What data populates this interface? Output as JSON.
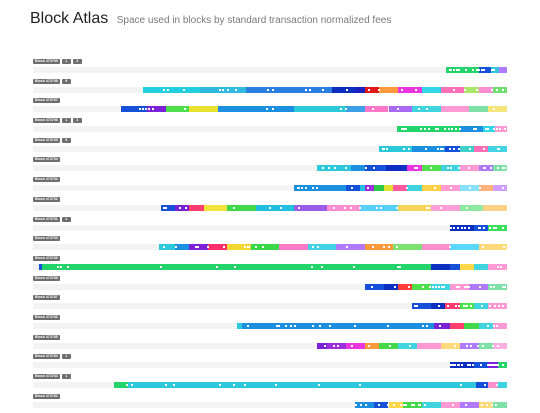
{
  "header": {
    "title": "Block Atlas",
    "subtitle": "Space used in blocks by standard transaction normalized fees"
  },
  "palette": {
    "track": "#f3f3f3",
    "label_bg": "#6e6e6e",
    "deep_blue": "#0d2fbf",
    "royal_blue": "#1550d8",
    "cyan": "#2ec8dc",
    "purple": "#7b22d6",
    "green": "#22d46a",
    "lime": "#8ce83a"
  },
  "blocks": [
    {
      "label": "Block 473799",
      "tags": [
        "1",
        "3"
      ],
      "fee_spectrum": [
        [
          0.871,
          "#22d46a"
        ],
        [
          0.94,
          "#1550d8"
        ],
        [
          0.967,
          "#35c7d9"
        ],
        [
          0.984,
          "#b07aff"
        ],
        [
          1.0,
          "#8ce83a"
        ]
      ]
    },
    {
      "label": "Block 473798",
      "tags": [
        "9"
      ],
      "fee_spectrum": [
        [
          0.232,
          "#22cfe0"
        ],
        [
          0.352,
          "#30b9df"
        ],
        [
          0.45,
          "#2a7fe0"
        ],
        [
          0.63,
          "#0d2fbf"
        ],
        [
          0.68,
          "#1a1fc0"
        ],
        [
          0.7,
          "#e01818"
        ],
        [
          0.73,
          "#ff9a3c"
        ],
        [
          0.77,
          "#ec34e0"
        ],
        [
          0.82,
          "#33d6e8"
        ],
        [
          0.86,
          "#ff6fb8"
        ],
        [
          0.91,
          "#a9e66a"
        ],
        [
          0.94,
          "#ff8dd2"
        ],
        [
          0.97,
          "#6fe06c"
        ],
        [
          1.0,
          "#8ce83a"
        ]
      ]
    },
    {
      "label": "Block 473797",
      "tags": [],
      "fee_spectrum": [
        [
          0.185,
          "#1550d8"
        ],
        [
          0.24,
          "#7b22d6"
        ],
        [
          0.28,
          "#4de04a"
        ],
        [
          0.33,
          "#e8e22e"
        ],
        [
          0.39,
          "#1d8fe0"
        ],
        [
          0.55,
          "#2ec8dc"
        ],
        [
          0.66,
          "#3da0e6"
        ],
        [
          0.7,
          "#ff78c8"
        ],
        [
          0.75,
          "#a86af0"
        ],
        [
          0.8,
          "#40d4e0"
        ],
        [
          0.86,
          "#ff9ad4"
        ],
        [
          0.92,
          "#7fe0a8"
        ],
        [
          0.96,
          "#f6e57a"
        ],
        [
          1.0,
          "#a8f070"
        ]
      ]
    },
    {
      "label": "Block 473796",
      "tags": [
        "1",
        "3"
      ],
      "fee_spectrum": [
        [
          0.767,
          "#22d46a"
        ],
        [
          0.9,
          "#1d8fe0"
        ],
        [
          0.95,
          "#33d6e8"
        ],
        [
          0.975,
          "#ff9ad4"
        ],
        [
          1.0,
          "#c7c2ff"
        ]
      ]
    },
    {
      "label": "Block 473795",
      "tags": [
        "9"
      ],
      "fee_spectrum": [
        [
          0.729,
          "#2ec8dc"
        ],
        [
          0.8,
          "#1d8fe0"
        ],
        [
          0.87,
          "#1550d8"
        ],
        [
          0.9,
          "#3dd0c8"
        ],
        [
          0.93,
          "#ff6fb8"
        ],
        [
          0.96,
          "#44d4e6"
        ],
        [
          1.0,
          "#ffb0e0"
        ]
      ]
    },
    {
      "label": "Block 473794",
      "tags": [],
      "fee_spectrum": [
        [
          0.6,
          "#2ec8dc"
        ],
        [
          0.67,
          "#1d8fe0"
        ],
        [
          0.7,
          "#1550d8"
        ],
        [
          0.745,
          "#0d2fbf"
        ],
        [
          0.79,
          "#ec34e0"
        ],
        [
          0.82,
          "#4de04a"
        ],
        [
          0.86,
          "#40d4e0"
        ],
        [
          0.9,
          "#ff9ad4"
        ],
        [
          0.94,
          "#b07aff"
        ],
        [
          0.97,
          "#7fe0a8"
        ],
        [
          1.0,
          "#a8f070"
        ]
      ]
    },
    {
      "label": "Block 473793",
      "tags": [],
      "fee_spectrum": [
        [
          0.55,
          "#1d8fe0"
        ],
        [
          0.66,
          "#1550d8"
        ],
        [
          0.69,
          "#22c0e0"
        ],
        [
          0.7,
          "#9c30e0"
        ],
        [
          0.72,
          "#2ec84a"
        ],
        [
          0.74,
          "#e0e030"
        ],
        [
          0.76,
          "#ff5aa0"
        ],
        [
          0.79,
          "#40d4e0"
        ],
        [
          0.82,
          "#ffd14a"
        ],
        [
          0.86,
          "#ff9ad4"
        ],
        [
          0.9,
          "#8ae0ff"
        ],
        [
          0.94,
          "#ffb37a"
        ],
        [
          0.97,
          "#cfa0ff"
        ],
        [
          1.0,
          "#a8f070"
        ]
      ]
    },
    {
      "label": "Block 473792",
      "tags": [],
      "fee_spectrum": [
        [
          0.27,
          "#1550d8"
        ],
        [
          0.3,
          "#7b22d6"
        ],
        [
          0.33,
          "#ff3d6e"
        ],
        [
          0.36,
          "#f2e23a"
        ],
        [
          0.41,
          "#42d84a"
        ],
        [
          0.47,
          "#22c0e0"
        ],
        [
          0.55,
          "#9a5ce8"
        ],
        [
          0.62,
          "#ff8fd0"
        ],
        [
          0.69,
          "#58d0ff"
        ],
        [
          0.77,
          "#f5d45a"
        ],
        [
          0.84,
          "#ffa0d8"
        ],
        [
          0.9,
          "#8fe8a0"
        ],
        [
          0.95,
          "#ffd28a"
        ],
        [
          1.0,
          "#c2f07c"
        ]
      ]
    },
    {
      "label": "Block 473791",
      "tags": [
        "1"
      ],
      "fee_spectrum": [
        [
          0.88,
          "#0d2fbf"
        ],
        [
          0.93,
          "#1550d8"
        ],
        [
          0.96,
          "#3de05a"
        ],
        [
          1.0,
          "#8ce83a"
        ]
      ]
    },
    {
      "label": "Block 473790",
      "tags": [],
      "fee_spectrum": [
        [
          0.265,
          "#2ec8dc"
        ],
        [
          0.3,
          "#1d8fe0"
        ],
        [
          0.33,
          "#7b22d6"
        ],
        [
          0.37,
          "#ff2f6a"
        ],
        [
          0.41,
          "#f2d830"
        ],
        [
          0.46,
          "#39d84a"
        ],
        [
          0.52,
          "#ff7ac8"
        ],
        [
          0.58,
          "#42d2e6"
        ],
        [
          0.64,
          "#b27aff"
        ],
        [
          0.7,
          "#ff9a3c"
        ],
        [
          0.76,
          "#7de070"
        ],
        [
          0.82,
          "#ff8fd0"
        ],
        [
          0.88,
          "#5ad8ff"
        ],
        [
          0.94,
          "#ffd97a"
        ],
        [
          1.0,
          "#b6f080"
        ]
      ]
    },
    {
      "label": "Block 473789",
      "tags": [],
      "fee_spectrum": [
        [
          0.012,
          "#1550d8"
        ],
        [
          0.02,
          "#22d46a"
        ],
        [
          0.84,
          "#0d2fbf"
        ],
        [
          0.88,
          "#1550d8"
        ],
        [
          0.9,
          "#ffd84a"
        ],
        [
          0.93,
          "#40d4e0"
        ],
        [
          0.96,
          "#ff9ad4"
        ],
        [
          1.0,
          "#a8f070"
        ]
      ]
    },
    {
      "label": "Block 473788",
      "tags": [],
      "fee_spectrum": [
        [
          0.7,
          "#1550d8"
        ],
        [
          0.74,
          "#0d2fbf"
        ],
        [
          0.77,
          "#ff3d3d"
        ],
        [
          0.8,
          "#4de04a"
        ],
        [
          0.84,
          "#40d4e0"
        ],
        [
          0.88,
          "#ff9ad4"
        ],
        [
          0.92,
          "#b07aff"
        ],
        [
          0.96,
          "#7fe0a8"
        ],
        [
          1.0,
          "#a8f070"
        ]
      ]
    },
    {
      "label": "Block 473787",
      "tags": [],
      "fee_spectrum": [
        [
          0.8,
          "#1550d8"
        ],
        [
          0.84,
          "#0d2fbf"
        ],
        [
          0.87,
          "#ff3d6e"
        ],
        [
          0.9,
          "#4de04a"
        ],
        [
          0.93,
          "#40d4e0"
        ],
        [
          0.96,
          "#ff9ad4"
        ],
        [
          1.0,
          "#a8f070"
        ]
      ]
    },
    {
      "label": "Block 473786",
      "tags": [],
      "fee_spectrum": [
        [
          0.43,
          "#2ec8dc"
        ],
        [
          0.44,
          "#1d8fe0"
        ],
        [
          0.845,
          "#7b22d6"
        ],
        [
          0.88,
          "#ff3d6e"
        ],
        [
          0.91,
          "#42d84a"
        ],
        [
          0.94,
          "#40d4e0"
        ],
        [
          0.97,
          "#ff9ad4"
        ],
        [
          1.0,
          "#d8c6ff"
        ]
      ]
    },
    {
      "label": "Block 473785",
      "tags": [],
      "fee_spectrum": [
        [
          0.6,
          "#7b22d6"
        ],
        [
          0.62,
          "#9c30e0"
        ],
        [
          0.66,
          "#ec34e0"
        ],
        [
          0.7,
          "#ff9a3c"
        ],
        [
          0.73,
          "#42d84a"
        ],
        [
          0.77,
          "#40d4e0"
        ],
        [
          0.81,
          "#ff9ad4"
        ],
        [
          0.86,
          "#ffd97a"
        ],
        [
          0.9,
          "#b07aff"
        ],
        [
          0.94,
          "#7fe0a8"
        ],
        [
          0.97,
          "#ffb0e0"
        ],
        [
          1.0,
          "#c2f07c"
        ]
      ]
    },
    {
      "label": "Block 473784",
      "tags": [
        "1"
      ],
      "fee_spectrum": [
        [
          0.88,
          "#0d2fbf"
        ],
        [
          0.93,
          "#1550d8"
        ],
        [
          0.96,
          "#7b22d6"
        ],
        [
          0.98,
          "#22d46a"
        ],
        [
          1.0,
          "#8ce83a"
        ]
      ]
    },
    {
      "label": "Block 473783",
      "tags": [
        "1"
      ],
      "fee_spectrum": [
        [
          0.17,
          "#22d46a"
        ],
        [
          0.2,
          "#2ec8dc"
        ],
        [
          0.935,
          "#1550d8"
        ],
        [
          0.96,
          "#ff8fd0"
        ],
        [
          0.98,
          "#40d4e0"
        ],
        [
          1.0,
          "#a8f070"
        ]
      ]
    },
    {
      "label": "Block 473782",
      "tags": [],
      "fee_spectrum": [
        [
          0.68,
          "#1d8fe0"
        ],
        [
          0.72,
          "#1550d8"
        ],
        [
          0.75,
          "#ffd84a"
        ],
        [
          0.78,
          "#42d84a"
        ],
        [
          0.82,
          "#40d4e0"
        ],
        [
          0.86,
          "#ff9ad4"
        ],
        [
          0.9,
          "#b07aff"
        ],
        [
          0.94,
          "#ffd97a"
        ],
        [
          0.97,
          "#7fe0a8"
        ],
        [
          1.0,
          "#a8f070"
        ]
      ]
    }
  ]
}
